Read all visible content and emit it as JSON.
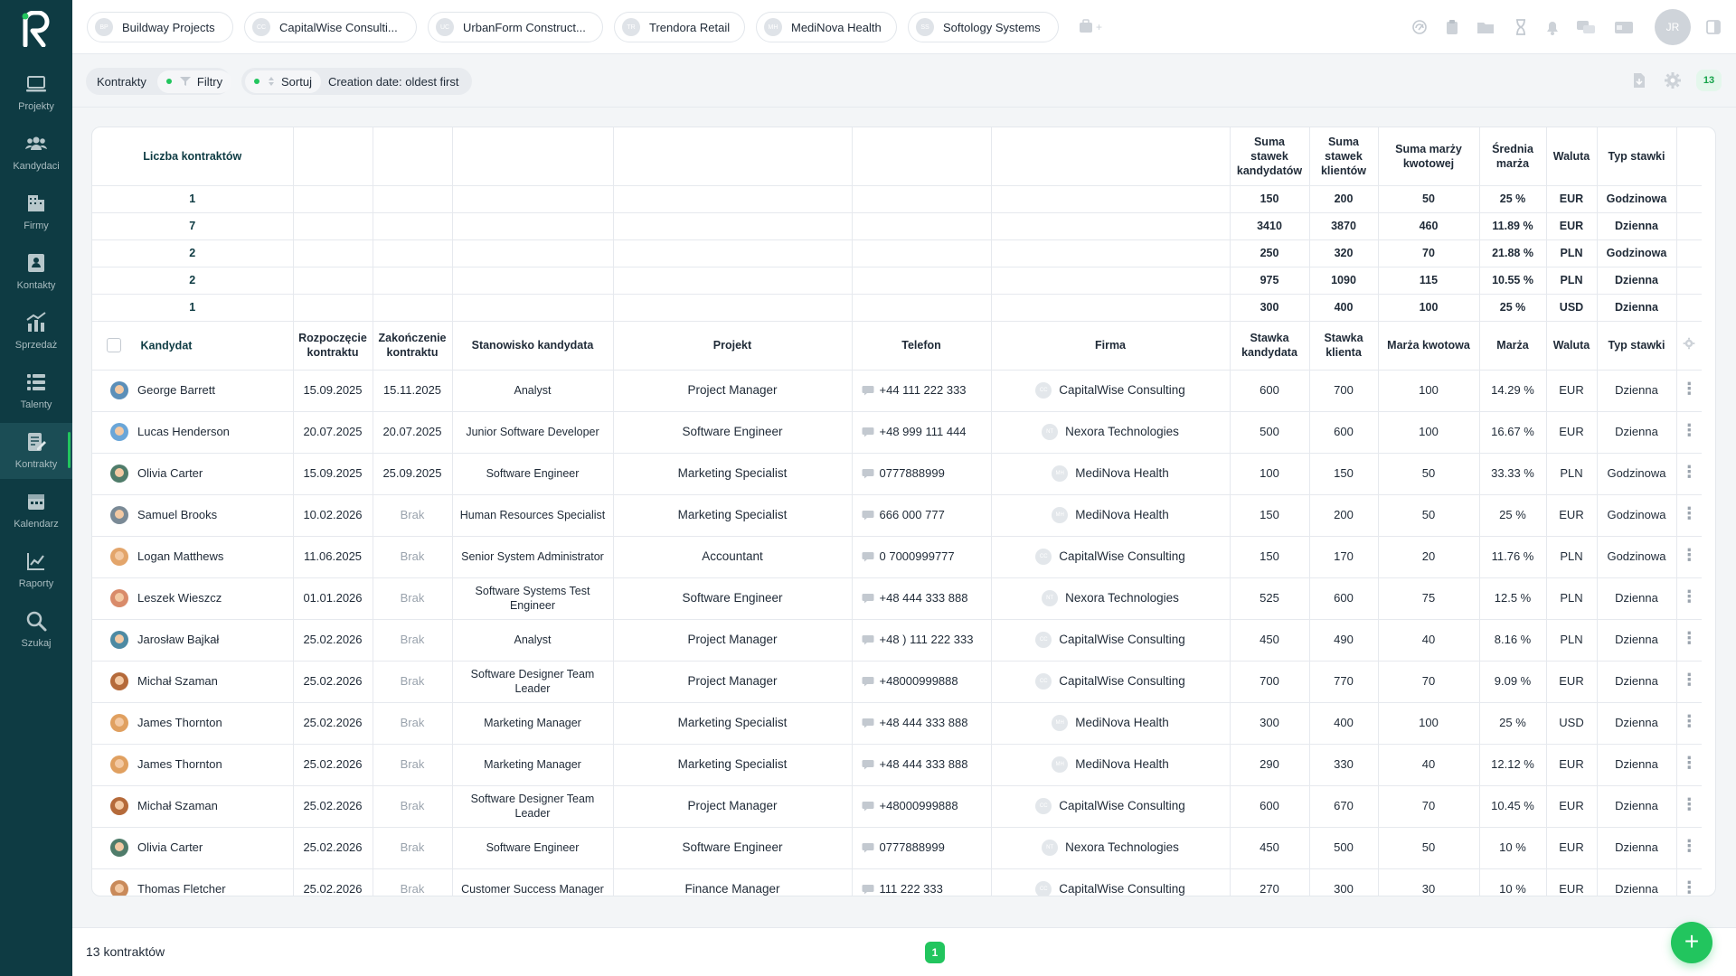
{
  "sidebar": {
    "items": [
      {
        "label": "Projekty",
        "icon": "laptop-icon"
      },
      {
        "label": "Kandydaci",
        "icon": "people-icon"
      },
      {
        "label": "Firmy",
        "icon": "building-icon"
      },
      {
        "label": "Kontakty",
        "icon": "contact-card-icon"
      },
      {
        "label": "Sprzedaż",
        "icon": "sales-chart-icon"
      },
      {
        "label": "Talenty",
        "icon": "list-icon"
      },
      {
        "label": "Kontrakty",
        "icon": "contract-icon"
      },
      {
        "label": "Kalendarz",
        "icon": "calendar-icon"
      },
      {
        "label": "Raporty",
        "icon": "report-chart-icon"
      },
      {
        "label": "Szukaj",
        "icon": "search-icon"
      }
    ],
    "active_index": 6
  },
  "topbar": {
    "project_tabs": [
      {
        "label": "Buildway Projects",
        "initials": "BP"
      },
      {
        "label": "CapitalWise Consulti...",
        "initials": "CC"
      },
      {
        "label": "UrbanForm Construct...",
        "initials": "UC"
      },
      {
        "label": "Trendora Retail",
        "initials": "TR"
      },
      {
        "label": "MediNova Health",
        "initials": "MH"
      },
      {
        "label": "Softology Systems",
        "initials": "SS"
      }
    ],
    "user_initials": "JR"
  },
  "filterbar": {
    "section_label": "Kontrakty",
    "filter_label": "Filtry",
    "sort_label": "Sortuj",
    "sort_value": "Creation date: oldest first",
    "count": "13"
  },
  "summary": {
    "headers": [
      "Liczba kontraktów",
      "Suma stawek kandydatów",
      "Suma stawek klientów",
      "Suma marży kwotowej",
      "Średnia marża",
      "Waluta",
      "Typ stawki"
    ],
    "rows": [
      [
        "1",
        "150",
        "200",
        "50",
        "25 %",
        "EUR",
        "Godzinowa"
      ],
      [
        "7",
        "3410",
        "3870",
        "460",
        "11.89 %",
        "EUR",
        "Dzienna"
      ],
      [
        "2",
        "250",
        "320",
        "70",
        "21.88 %",
        "PLN",
        "Godzinowa"
      ],
      [
        "2",
        "975",
        "1090",
        "115",
        "10.55 %",
        "PLN",
        "Dzienna"
      ],
      [
        "1",
        "300",
        "400",
        "100",
        "25 %",
        "USD",
        "Dzienna"
      ]
    ]
  },
  "table": {
    "headers": [
      "Kandydat",
      "Rozpoczęcie kontraktu",
      "Zakończenie kontraktu",
      "Stanowisko kandydata",
      "Projekt",
      "Telefon",
      "Firma",
      "Stawka kandydata",
      "Stawka klienta",
      "Marża kwotowa",
      "Marża",
      "Waluta",
      "Typ stawki"
    ],
    "rows": [
      {
        "candidate": "George Barrett",
        "start": "15.09.2025",
        "end": "15.11.2025",
        "position": "Analyst",
        "project": "Project Manager",
        "phone": "+44 111 222 333",
        "firm": "CapitalWise Consulting",
        "firm_initials": "CC",
        "cand_rate": "600",
        "client_rate": "700",
        "margin_amount": "100",
        "margin": "14.29 %",
        "currency": "EUR",
        "rate_type": "Dzienna",
        "avatar_color": "#5b8fb9"
      },
      {
        "candidate": "Lucas Henderson",
        "start": "20.07.2025",
        "end": "20.07.2025",
        "position": "Junior Software Developer",
        "project": "Software Engineer",
        "phone": "+48 999 111 444",
        "firm": "Nexora Technologies",
        "firm_initials": "NT",
        "cand_rate": "500",
        "client_rate": "600",
        "margin_amount": "100",
        "margin": "16.67 %",
        "currency": "EUR",
        "rate_type": "Dzienna",
        "avatar_color": "#6aa6d8"
      },
      {
        "candidate": "Olivia Carter",
        "start": "15.09.2025",
        "end": "25.09.2025",
        "position": "Software Engineer",
        "project": "Marketing Specialist",
        "phone": "0777888999",
        "firm": "MediNova Health",
        "firm_initials": "MH",
        "cand_rate": "100",
        "client_rate": "150",
        "margin_amount": "50",
        "margin": "33.33 %",
        "currency": "PLN",
        "rate_type": "Godzinowa",
        "avatar_color": "#4f7c6a"
      },
      {
        "candidate": "Samuel Brooks",
        "start": "10.02.2026",
        "end": "Brak",
        "position": "Human Resources Specialist",
        "project": "Marketing Specialist",
        "phone": "666 000 777",
        "firm": "MediNova Health",
        "firm_initials": "MH",
        "cand_rate": "150",
        "client_rate": "200",
        "margin_amount": "50",
        "margin": "25 %",
        "currency": "EUR",
        "rate_type": "Godzinowa",
        "avatar_color": "#7a8a96"
      },
      {
        "candidate": "Logan Matthews",
        "start": "11.06.2025",
        "end": "Brak",
        "position": "Senior System Administrator",
        "project": "Accountant",
        "phone": "0 7000999777",
        "firm": "CapitalWise Consulting",
        "firm_initials": "CC",
        "cand_rate": "150",
        "client_rate": "170",
        "margin_amount": "20",
        "margin": "11.76 %",
        "currency": "PLN",
        "rate_type": "Godzinowa",
        "avatar_color": "#e3a56b"
      },
      {
        "candidate": "Leszek Wieszcz",
        "start": "01.01.2026",
        "end": "Brak",
        "position": "Software Systems Test Engineer",
        "project": "Software Engineer",
        "phone": "+48 444 333 888",
        "firm": "Nexora Technologies",
        "firm_initials": "NT",
        "cand_rate": "525",
        "client_rate": "600",
        "margin_amount": "75",
        "margin": "12.5 %",
        "currency": "PLN",
        "rate_type": "Dzienna",
        "avatar_color": "#d98b6a"
      },
      {
        "candidate": "Jarosław Bajkał",
        "start": "25.02.2026",
        "end": "Brak",
        "position": "Analyst",
        "project": "Project Manager",
        "phone": "+48 ) 111 222 333",
        "firm": "CapitalWise Consulting",
        "firm_initials": "CC",
        "cand_rate": "450",
        "client_rate": "490",
        "margin_amount": "40",
        "margin": "8.16 %",
        "currency": "PLN",
        "rate_type": "Dzienna",
        "avatar_color": "#4d8aa3"
      },
      {
        "candidate": "Michał Szaman",
        "start": "25.02.2026",
        "end": "Brak",
        "position": "Software Designer Team Leader",
        "project": "Project Manager",
        "phone": "+48000999888",
        "firm": "CapitalWise Consulting",
        "firm_initials": "CC",
        "cand_rate": "700",
        "client_rate": "770",
        "margin_amount": "70",
        "margin": "9.09 %",
        "currency": "EUR",
        "rate_type": "Dzienna",
        "avatar_color": "#b56a3a"
      },
      {
        "candidate": "James Thornton",
        "start": "25.02.2026",
        "end": "Brak",
        "position": "Marketing Manager",
        "project": "Marketing Specialist",
        "phone": "+48 444 333 888",
        "firm": "MediNova Health",
        "firm_initials": "MH",
        "cand_rate": "300",
        "client_rate": "400",
        "margin_amount": "100",
        "margin": "25 %",
        "currency": "USD",
        "rate_type": "Dzienna",
        "avatar_color": "#e0a060"
      },
      {
        "candidate": "James Thornton",
        "start": "25.02.2026",
        "end": "Brak",
        "position": "Marketing Manager",
        "project": "Marketing Specialist",
        "phone": "+48 444 333 888",
        "firm": "MediNova Health",
        "firm_initials": "MH",
        "cand_rate": "290",
        "client_rate": "330",
        "margin_amount": "40",
        "margin": "12.12 %",
        "currency": "EUR",
        "rate_type": "Dzienna",
        "avatar_color": "#e0a060"
      },
      {
        "candidate": "Michał Szaman",
        "start": "25.02.2026",
        "end": "Brak",
        "position": "Software Designer Team Leader",
        "project": "Project Manager",
        "phone": "+48000999888",
        "firm": "CapitalWise Consulting",
        "firm_initials": "CC",
        "cand_rate": "600",
        "client_rate": "670",
        "margin_amount": "70",
        "margin": "10.45 %",
        "currency": "EUR",
        "rate_type": "Dzienna",
        "avatar_color": "#b56a3a"
      },
      {
        "candidate": "Olivia Carter",
        "start": "25.02.2026",
        "end": "Brak",
        "position": "Software Engineer",
        "project": "Software Engineer",
        "phone": "0777888999",
        "firm": "Nexora Technologies",
        "firm_initials": "NT",
        "cand_rate": "450",
        "client_rate": "500",
        "margin_amount": "50",
        "margin": "10 %",
        "currency": "EUR",
        "rate_type": "Dzienna",
        "avatar_color": "#4f7c6a"
      },
      {
        "candidate": "Thomas Fletcher",
        "start": "25.02.2026",
        "end": "Brak",
        "position": "Customer Success Manager",
        "project": "Finance Manager",
        "phone": "111 222 333",
        "firm": "CapitalWise Consulting",
        "firm_initials": "CC",
        "cand_rate": "270",
        "client_rate": "300",
        "margin_amount": "30",
        "margin": "10 %",
        "currency": "EUR",
        "rate_type": "Dzienna",
        "avatar_color": "#c98a5a"
      }
    ]
  },
  "footer": {
    "total_label": "13 kontraktów",
    "current_page": "1"
  },
  "colors": {
    "sidebar_bg": "#0e3b43",
    "accent_green": "#22c55e"
  }
}
